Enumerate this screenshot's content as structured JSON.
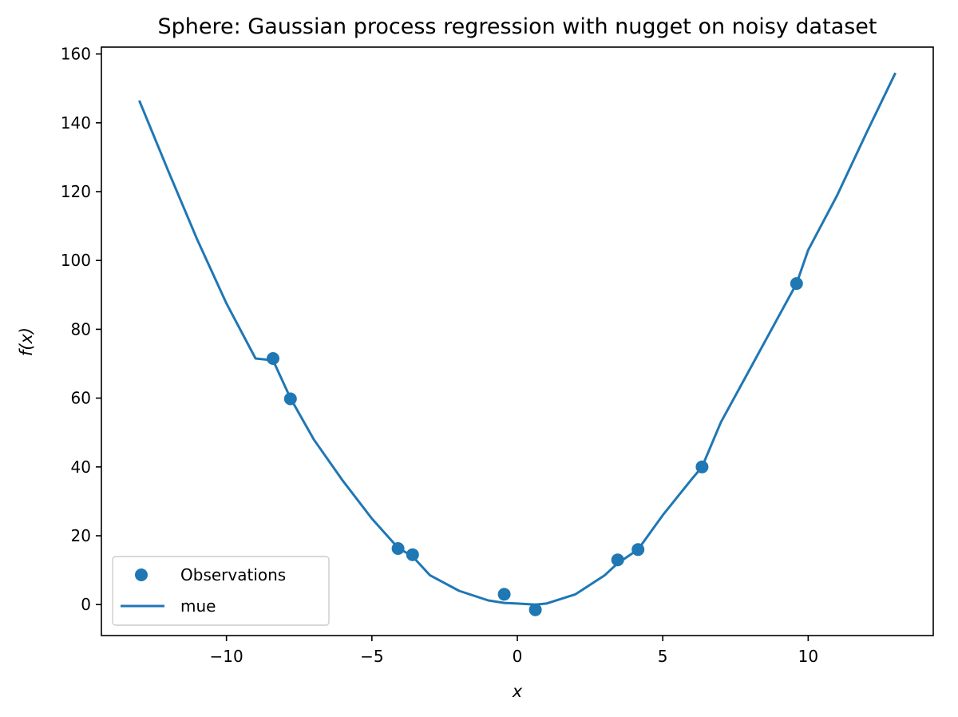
{
  "chart_data": {
    "type": "scatter",
    "title": "Sphere: Gaussian process regression with nugget on noisy dataset",
    "xlabel": "x",
    "ylabel": "f(x)",
    "xlim": [
      -14.3,
      14.3
    ],
    "ylim": [
      -9,
      162
    ],
    "xticks": [
      -10,
      -5,
      0,
      5,
      10
    ],
    "xtick_labels": [
      "−10",
      "−5",
      "0",
      "5",
      "10"
    ],
    "yticks": [
      0,
      20,
      40,
      60,
      80,
      100,
      120,
      140,
      160
    ],
    "ytick_labels": [
      "0",
      "20",
      "40",
      "60",
      "80",
      "100",
      "120",
      "140",
      "160"
    ],
    "grid": false,
    "legend_position": "lower-left",
    "color": "#1f77b4",
    "series": [
      {
        "name": "Observations",
        "kind": "scatter",
        "x": [
          -8.4,
          -7.8,
          -4.1,
          -3.6,
          -0.45,
          0.62,
          3.45,
          4.15,
          6.35,
          9.6
        ],
        "y": [
          71.5,
          59.8,
          16.3,
          14.5,
          3.0,
          -1.5,
          13.0,
          16.0,
          40.0,
          93.3
        ]
      },
      {
        "name": "mue",
        "kind": "line",
        "x": [
          -13,
          -12,
          -11,
          -10,
          -9,
          -8.4,
          -7.8,
          -7,
          -6,
          -5,
          -4.1,
          -3.6,
          -3,
          -2,
          -1,
          -0.45,
          0,
          0.62,
          1,
          2,
          3,
          3.45,
          4.15,
          5,
          6,
          6.35,
          7,
          8,
          9,
          9.6,
          10,
          11,
          12,
          13
        ],
        "y": [
          146.5,
          126.0,
          106.0,
          87.5,
          71.5,
          71.0,
          60.0,
          48.0,
          36.0,
          25.0,
          16.5,
          14.0,
          8.5,
          4.0,
          1.2,
          0.5,
          0.3,
          0.0,
          0.3,
          3.0,
          8.5,
          12.0,
          16.0,
          26.0,
          36.5,
          40.0,
          53.0,
          68.5,
          84.0,
          93.3,
          103.0,
          119.0,
          137.0,
          154.5
        ]
      }
    ]
  }
}
